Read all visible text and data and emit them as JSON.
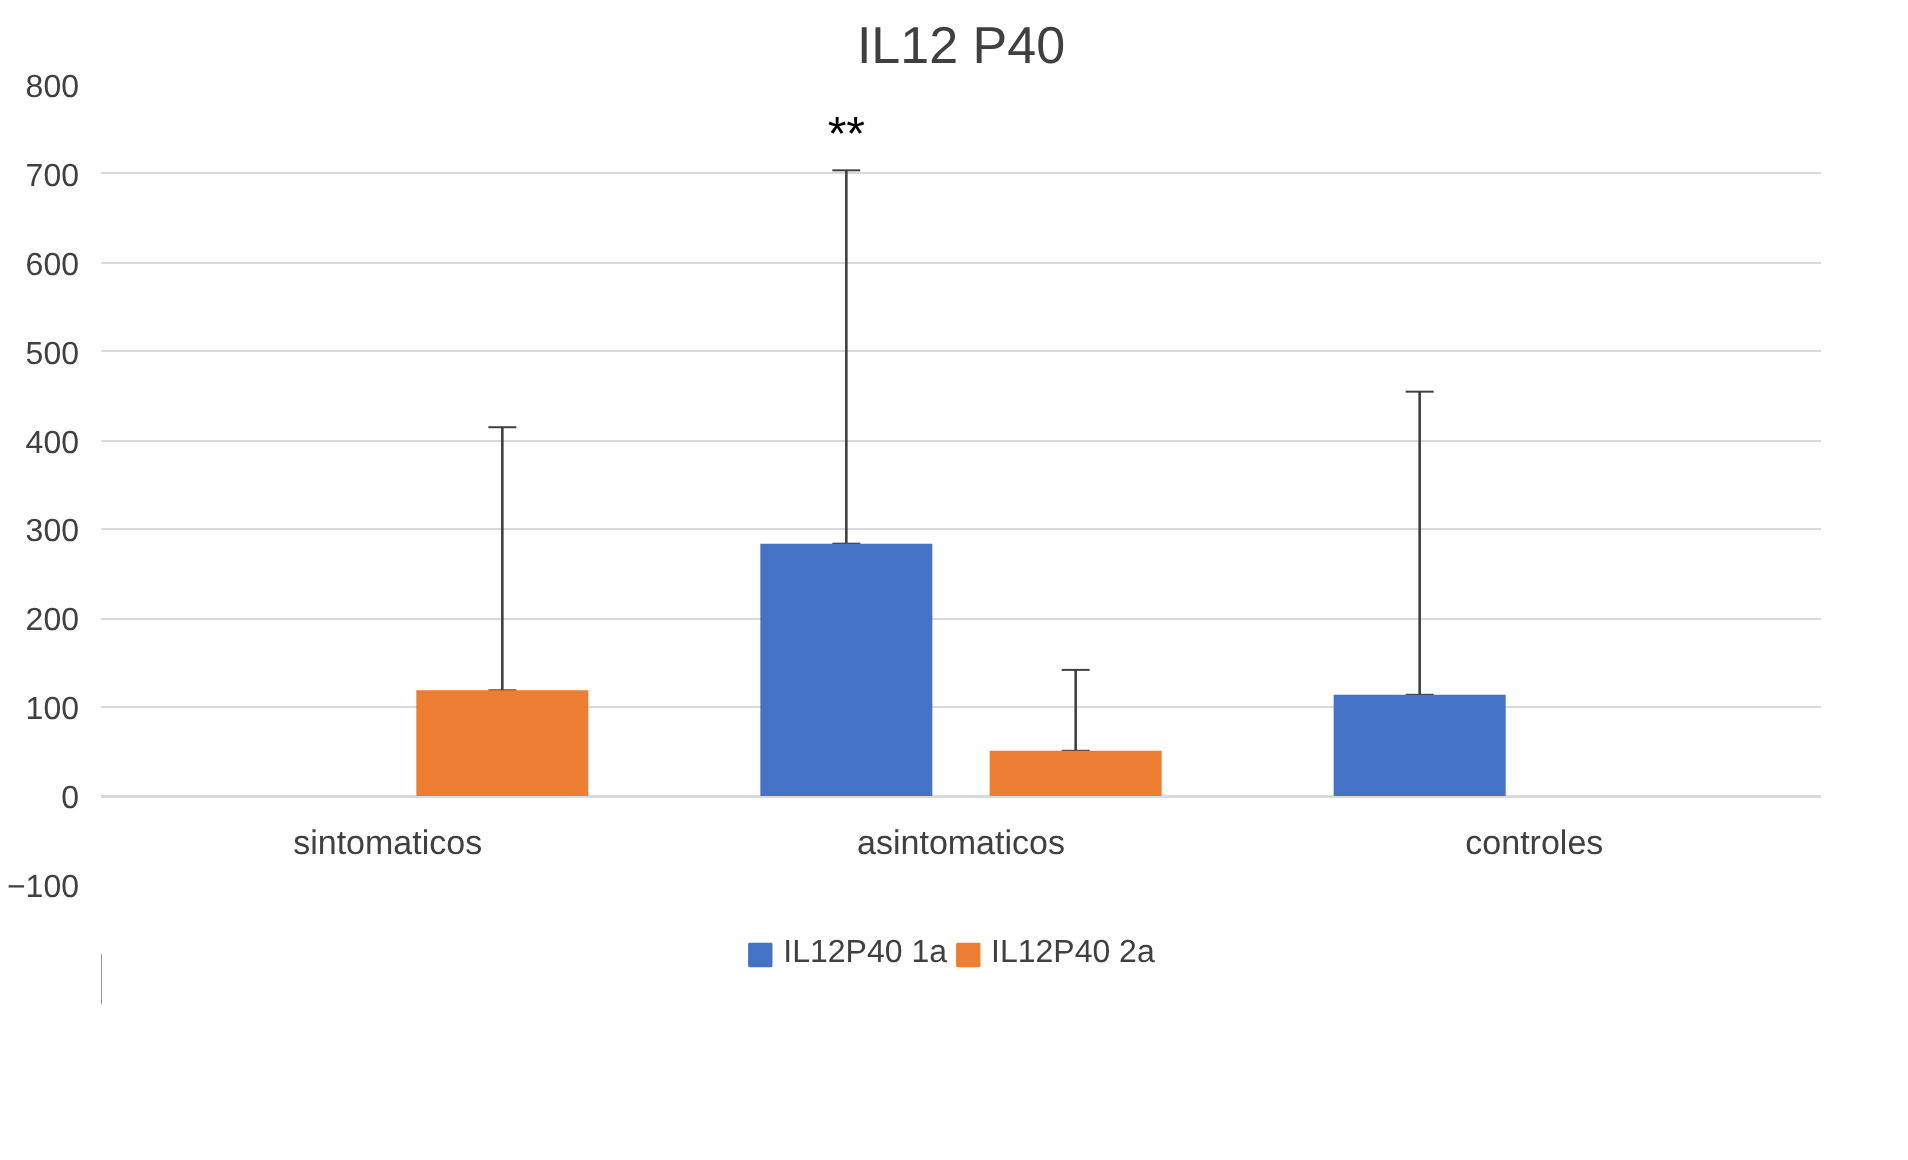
{
  "chart_data": {
    "type": "bar",
    "title": "IL12 P40",
    "categories": [
      "sintomaticos",
      "asintomaticos",
      "controles"
    ],
    "series": [
      {
        "name": "IL12P40 1a",
        "color": "#4472c4",
        "values": [
          0,
          284,
          114
        ],
        "errors": [
          null,
          [
            284,
            704
          ],
          [
            114,
            455
          ]
        ]
      },
      {
        "name": "IL12P40 2a",
        "color": "#ed7d31",
        "values": [
          119,
          51,
          0
        ],
        "errors": [
          [
            119,
            415
          ],
          [
            51,
            142
          ],
          null
        ]
      }
    ],
    "ylim": [
      -100,
      800
    ],
    "yticks": [
      -100,
      0,
      100,
      200,
      300,
      400,
      500,
      600,
      700,
      800
    ],
    "grid": "y",
    "legend": "bottom",
    "annotations": [
      "**"
    ]
  }
}
